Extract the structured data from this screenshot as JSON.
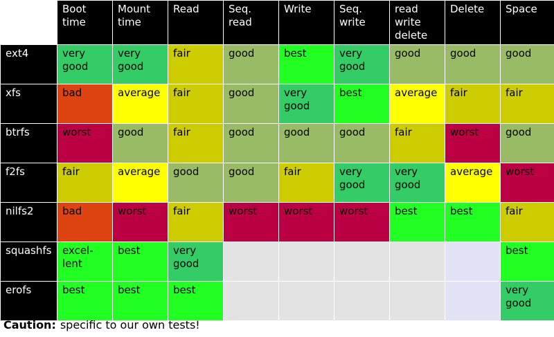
{
  "columns": [
    "Boot time",
    "Mount time",
    "Read",
    "Seq. read",
    "Write",
    "Seq. write",
    "read write delete",
    "Delete",
    "Space"
  ],
  "column_lines": [
    [
      "Boot",
      "time"
    ],
    [
      "Mount",
      "time"
    ],
    [
      "Read"
    ],
    [
      "Seq.",
      "read"
    ],
    [
      "Write"
    ],
    [
      "Seq.",
      "write"
    ],
    [
      "read",
      "write",
      "delete"
    ],
    [
      "Delete"
    ],
    [
      "Space"
    ]
  ],
  "rows": [
    {
      "fs": "ext4",
      "cells": [
        {
          "lines": [
            "very",
            "good"
          ],
          "rating": "verygood"
        },
        {
          "lines": [
            "very",
            "good"
          ],
          "rating": "verygood"
        },
        {
          "lines": [
            "fair"
          ],
          "rating": "fair"
        },
        {
          "lines": [
            "good"
          ],
          "rating": "good"
        },
        {
          "lines": [
            "best"
          ],
          "rating": "best"
        },
        {
          "lines": [
            "very",
            "good"
          ],
          "rating": "verygood"
        },
        {
          "lines": [
            "good"
          ],
          "rating": "good"
        },
        {
          "lines": [
            "good"
          ],
          "rating": "good"
        },
        {
          "lines": [
            "good"
          ],
          "rating": "good"
        }
      ]
    },
    {
      "fs": "xfs",
      "cells": [
        {
          "lines": [
            "bad"
          ],
          "rating": "bad"
        },
        {
          "lines": [
            "average"
          ],
          "rating": "average"
        },
        {
          "lines": [
            "fair"
          ],
          "rating": "fair"
        },
        {
          "lines": [
            "good"
          ],
          "rating": "good"
        },
        {
          "lines": [
            "very",
            "good"
          ],
          "rating": "verygood"
        },
        {
          "lines": [
            "best"
          ],
          "rating": "best"
        },
        {
          "lines": [
            "average"
          ],
          "rating": "average"
        },
        {
          "lines": [
            "fair"
          ],
          "rating": "fair"
        },
        {
          "lines": [
            "fair"
          ],
          "rating": "fair"
        }
      ]
    },
    {
      "fs": "btrfs",
      "cells": [
        {
          "lines": [
            "worst"
          ],
          "rating": "worst"
        },
        {
          "lines": [
            "good"
          ],
          "rating": "good"
        },
        {
          "lines": [
            "fair"
          ],
          "rating": "fair"
        },
        {
          "lines": [
            "good"
          ],
          "rating": "good"
        },
        {
          "lines": [
            "good"
          ],
          "rating": "good"
        },
        {
          "lines": [
            "good"
          ],
          "rating": "good"
        },
        {
          "lines": [
            "fair"
          ],
          "rating": "fair"
        },
        {
          "lines": [
            "worst"
          ],
          "rating": "worst"
        },
        {
          "lines": [
            "good"
          ],
          "rating": "good"
        }
      ]
    },
    {
      "fs": "f2fs",
      "cells": [
        {
          "lines": [
            "fair"
          ],
          "rating": "fair"
        },
        {
          "lines": [
            "average"
          ],
          "rating": "average"
        },
        {
          "lines": [
            "good"
          ],
          "rating": "good"
        },
        {
          "lines": [
            "good"
          ],
          "rating": "good"
        },
        {
          "lines": [
            "fair"
          ],
          "rating": "fair"
        },
        {
          "lines": [
            "very",
            "good"
          ],
          "rating": "verygood"
        },
        {
          "lines": [
            "very",
            "good"
          ],
          "rating": "verygood"
        },
        {
          "lines": [
            "average"
          ],
          "rating": "average"
        },
        {
          "lines": [
            "worst"
          ],
          "rating": "worst"
        }
      ]
    },
    {
      "fs": "nilfs2",
      "cells": [
        {
          "lines": [
            "bad"
          ],
          "rating": "bad"
        },
        {
          "lines": [
            "worst"
          ],
          "rating": "worst"
        },
        {
          "lines": [
            "fair"
          ],
          "rating": "fair"
        },
        {
          "lines": [
            "worst"
          ],
          "rating": "worst"
        },
        {
          "lines": [
            "worst"
          ],
          "rating": "worst"
        },
        {
          "lines": [
            "worst"
          ],
          "rating": "worst"
        },
        {
          "lines": [
            "best"
          ],
          "rating": "best"
        },
        {
          "lines": [
            "best"
          ],
          "rating": "best"
        },
        {
          "lines": [
            "fair"
          ],
          "rating": "fair"
        }
      ]
    },
    {
      "fs": "squashfs",
      "cells": [
        {
          "lines": [
            "excel-",
            "lent"
          ],
          "rating": "excellent"
        },
        {
          "lines": [
            "best"
          ],
          "rating": "best"
        },
        {
          "lines": [
            "very",
            "good"
          ],
          "rating": "verygood"
        },
        {
          "lines": [],
          "rating": "na"
        },
        {
          "lines": [],
          "rating": "na"
        },
        {
          "lines": [],
          "rating": "na"
        },
        {
          "lines": [],
          "rating": "na"
        },
        {
          "lines": [],
          "rating": "na2"
        },
        {
          "lines": [
            "best"
          ],
          "rating": "best"
        }
      ]
    },
    {
      "fs": "erofs",
      "cells": [
        {
          "lines": [
            "best"
          ],
          "rating": "best"
        },
        {
          "lines": [
            "best"
          ],
          "rating": "best"
        },
        {
          "lines": [
            "best"
          ],
          "rating": "best"
        },
        {
          "lines": [],
          "rating": "na"
        },
        {
          "lines": [],
          "rating": "na"
        },
        {
          "lines": [],
          "rating": "na"
        },
        {
          "lines": [],
          "rating": "na"
        },
        {
          "lines": [],
          "rating": "na2"
        },
        {
          "lines": [
            "very",
            "good"
          ],
          "rating": "verygood"
        }
      ]
    }
  ],
  "rating_colors": {
    "excellent": "#22ff22",
    "best": "#22ff22",
    "verygood": "#33cc66",
    "good": "#99bb66",
    "fair": "#cccc00",
    "average": "#ffff00",
    "bad": "#dd4411",
    "worst": "#bb0044",
    "na": "#e3e3e3",
    "na2": "#e3e3f7"
  },
  "caption": {
    "label": "Caution:",
    "text": "specific to our own tests!"
  }
}
